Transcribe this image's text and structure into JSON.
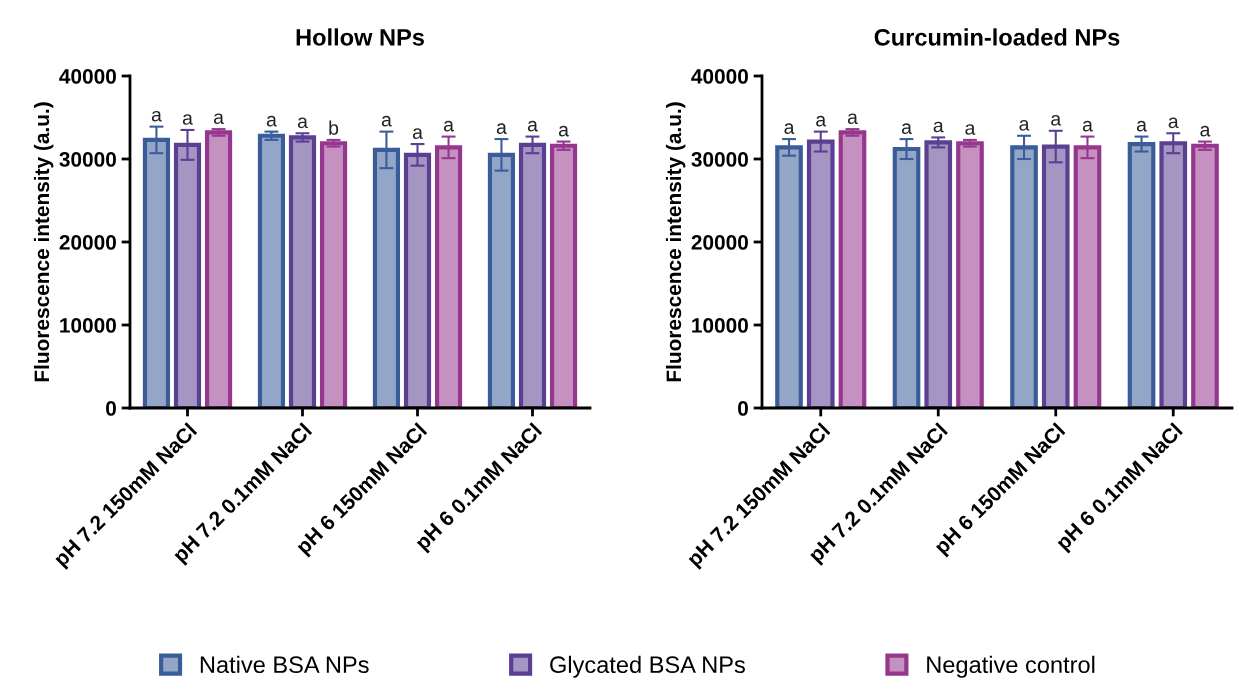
{
  "chart_data": [
    {
      "type": "bar",
      "title": "Hollow NPs",
      "ylabel": "Fluorescence intensity (a.u.)",
      "categories": [
        "pH 7.2 150mM NaCl",
        "pH 7.2 0.1mM NaCl",
        "pH 6 150mM NaCl",
        "pH 6 0.1mM NaCl"
      ],
      "ylim": [
        0,
        40000
      ],
      "yticks": [
        0,
        10000,
        20000,
        30000,
        40000
      ],
      "legend": "bottom",
      "series": [
        {
          "name": "Native BSA NPs",
          "color": "#3a5d9a",
          "values": [
            32300,
            32800,
            31100,
            30500
          ],
          "errors": [
            1600,
            500,
            2200,
            1900
          ],
          "value_labels": [
            "a",
            "a",
            "a",
            "a"
          ]
        },
        {
          "name": "Glycated BSA NPs",
          "color": "#5a3f92",
          "values": [
            31700,
            32600,
            30500,
            31700
          ],
          "errors": [
            1800,
            500,
            1300,
            1000
          ],
          "value_labels": [
            "a",
            "a",
            "a",
            "a"
          ]
        },
        {
          "name": "Negative control",
          "color": "#96378e",
          "values": [
            33200,
            31900,
            31400,
            31600
          ],
          "errors": [
            400,
            400,
            1300,
            500
          ],
          "value_labels": [
            "a",
            "b",
            "a",
            "a"
          ]
        }
      ]
    },
    {
      "type": "bar",
      "title": "Curcumin-loaded NPs",
      "ylabel": "Fluorescence intensity (a.u.)",
      "categories": [
        "pH 7.2 150mM NaCl",
        "pH 7.2 0.1mM NaCl",
        "pH 6 150mM NaCl",
        "pH 6 0.1mM NaCl"
      ],
      "ylim": [
        0,
        40000
      ],
      "yticks": [
        0,
        10000,
        20000,
        30000,
        40000
      ],
      "series": [
        {
          "color": "#3a5d9a",
          "values": [
            31400,
            31200,
            31400,
            31800
          ],
          "errors": [
            1000,
            1200,
            1400,
            900
          ],
          "value_labels": [
            "a",
            "a",
            "a",
            "a"
          ]
        },
        {
          "color": "#5a3f92",
          "values": [
            32100,
            32000,
            31500,
            31900
          ],
          "errors": [
            1200,
            600,
            1900,
            1200
          ],
          "value_labels": [
            "a",
            "a",
            "a",
            "a"
          ]
        },
        {
          "color": "#96378e",
          "values": [
            33200,
            31900,
            31400,
            31600
          ],
          "errors": [
            400,
            400,
            1300,
            500
          ],
          "value_labels": [
            "a",
            "a",
            "a",
            "a"
          ]
        }
      ]
    }
  ]
}
